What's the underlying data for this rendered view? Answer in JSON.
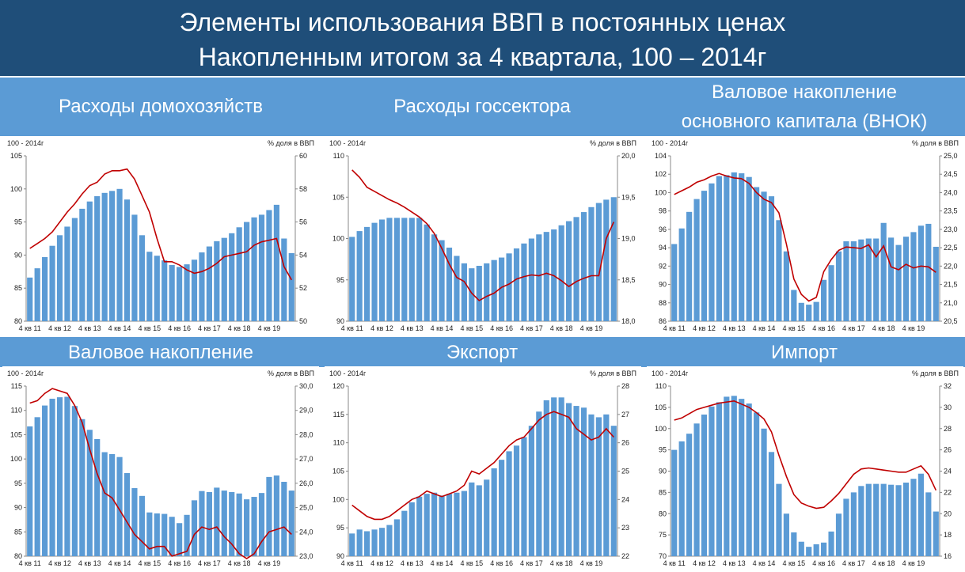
{
  "header": {
    "line1": "Элементы использования ВВП в постоянных ценах",
    "line2": "Накопленным итогом за 4 квартала, 100 – 2014г"
  },
  "colors": {
    "header_bg": "#1f4e79",
    "band_bg": "#5b9bd5",
    "bar": "#5b9bd5",
    "line": "#c00000"
  },
  "x_tick_labels": [
    "4 кв 11",
    "4 кв 12",
    "4 кв 13",
    "4 кв 14",
    "4 кв 15",
    "4 кв 16",
    "4 кв 17",
    "4 кв 18",
    "4 кв 19"
  ],
  "chart_data": [
    {
      "type": "bar",
      "title": "Расходы домохозяйств",
      "left_unit": "100 - 2014г",
      "right_unit": "% доля в ВВП",
      "ylim": [
        80,
        105
      ],
      "yticks": [
        80,
        85,
        90,
        95,
        100,
        105
      ],
      "y2lim": [
        50,
        60
      ],
      "y2ticks": [
        50,
        52,
        54,
        56,
        58,
        60
      ],
      "series": [
        {
          "name": "",
          "type": "bar",
          "axis": "left",
          "values": [
            86.6,
            88.0,
            89.7,
            91.4,
            93.0,
            94.3,
            95.6,
            97.0,
            98.1,
            98.9,
            99.4,
            99.7,
            100.0,
            98.4,
            96.1,
            93.0,
            90.5,
            89.9,
            89.2,
            88.5,
            88.2,
            88.6,
            89.3,
            90.4,
            91.3,
            92.1,
            92.6,
            93.3,
            94.2,
            95.0,
            95.7,
            96.1,
            96.8,
            97.6,
            92.5,
            90.3
          ]
        },
        {
          "name": "",
          "type": "line",
          "axis": "right",
          "values": [
            54.4,
            54.7,
            55.0,
            55.4,
            56.0,
            56.6,
            57.1,
            57.7,
            58.2,
            58.4,
            58.9,
            59.1,
            59.1,
            59.2,
            58.6,
            57.6,
            56.6,
            55.0,
            53.6,
            53.6,
            53.4,
            53.1,
            52.9,
            53.0,
            53.2,
            53.5,
            53.9,
            54.0,
            54.1,
            54.2,
            54.6,
            54.8,
            54.9,
            55.0,
            53.3,
            52.5
          ]
        }
      ]
    },
    {
      "type": "bar",
      "title": "Расходы госсектора",
      "left_unit": "100 - 2014г",
      "right_unit": "% доля в ВВП",
      "ylim": [
        90,
        110
      ],
      "yticks": [
        90,
        95,
        100,
        105,
        110
      ],
      "y2lim": [
        18.0,
        20.0
      ],
      "y2ticks": [
        "18,0",
        "18,5",
        "19,0",
        "19,5",
        "20,0"
      ],
      "series": [
        {
          "name": "",
          "type": "bar",
          "axis": "left",
          "values": [
            100.2,
            100.9,
            101.4,
            101.9,
            102.3,
            102.5,
            102.5,
            102.5,
            102.5,
            102.5,
            101.7,
            100.5,
            99.8,
            98.9,
            97.9,
            97.0,
            96.4,
            96.7,
            97.0,
            97.4,
            97.7,
            98.2,
            98.8,
            99.4,
            100.0,
            100.5,
            100.8,
            101.1,
            101.6,
            102.1,
            102.6,
            103.2,
            103.8,
            104.3,
            104.7,
            105.0
          ]
        },
        {
          "name": "",
          "type": "line",
          "axis": "right",
          "values": [
            19.83,
            19.74,
            19.62,
            19.57,
            19.52,
            19.47,
            19.43,
            19.38,
            19.32,
            19.26,
            19.18,
            19.06,
            18.88,
            18.69,
            18.53,
            18.48,
            18.34,
            18.25,
            18.3,
            18.34,
            18.41,
            18.45,
            18.51,
            18.54,
            18.56,
            18.55,
            18.58,
            18.55,
            18.49,
            18.42,
            18.48,
            18.52,
            18.55,
            18.55,
            19.0,
            19.2
          ]
        }
      ]
    },
    {
      "type": "bar",
      "title": "Валовое накопление основного капитала (ВНОК)",
      "title_line1": "Валовое накопление",
      "title_line2": "основного капитала (ВНОК)",
      "left_unit": "100 - 2014г",
      "right_unit": "% доля в ВВП",
      "ylim": [
        86,
        104
      ],
      "yticks": [
        86,
        88,
        90,
        92,
        94,
        96,
        98,
        100,
        102,
        104
      ],
      "y2lim": [
        20.5,
        25.0
      ],
      "y2ticks": [
        "20,5",
        "21,0",
        "21,5",
        "22,0",
        "22,5",
        "23,0",
        "23,5",
        "24,0",
        "24,5",
        "25,0"
      ],
      "series": [
        {
          "name": "",
          "type": "bar",
          "axis": "left",
          "values": [
            94.4,
            96.1,
            97.9,
            99.3,
            100.2,
            101.0,
            101.8,
            101.9,
            102.2,
            102.1,
            101.7,
            100.6,
            100.1,
            99.6,
            97.0,
            93.6,
            89.4,
            88.0,
            87.8,
            88.1,
            90.5,
            92.1,
            93.6,
            94.7,
            94.7,
            94.9,
            95.0,
            95.0,
            96.7,
            95.1,
            94.3,
            95.2,
            95.7,
            96.4,
            96.6,
            94.1
          ]
        },
        {
          "name": "",
          "type": "line",
          "axis": "right",
          "values": [
            23.95,
            24.05,
            24.15,
            24.28,
            24.35,
            24.45,
            24.52,
            24.45,
            24.4,
            24.38,
            24.25,
            24.0,
            23.82,
            23.73,
            23.45,
            22.6,
            21.65,
            21.23,
            21.05,
            21.15,
            21.85,
            22.18,
            22.43,
            22.52,
            22.5,
            22.48,
            22.58,
            22.25,
            22.55,
            21.98,
            21.9,
            22.05,
            21.95,
            22.0,
            21.98,
            21.83
          ]
        }
      ]
    },
    {
      "type": "bar",
      "title": "Валовое накопление",
      "left_unit": "100 - 2014г",
      "right_unit": "% доля в ВВП",
      "ylim": [
        80,
        115
      ],
      "yticks": [
        80,
        85,
        90,
        95,
        100,
        105,
        110,
        115
      ],
      "y2lim": [
        23.0,
        30.0
      ],
      "y2ticks": [
        "23,0",
        "24,0",
        "25,0",
        "26,0",
        "27,0",
        "28,0",
        "29,0",
        "30,0"
      ],
      "series": [
        {
          "name": "",
          "type": "bar",
          "axis": "left",
          "values": [
            106.7,
            108.6,
            111.0,
            112.4,
            112.7,
            112.8,
            110.9,
            108.2,
            106.0,
            104.1,
            101.4,
            101.0,
            100.4,
            97.1,
            94.0,
            92.4,
            89.0,
            88.8,
            88.7,
            88.1,
            86.8,
            88.5,
            91.5,
            93.4,
            93.2,
            94.1,
            93.5,
            93.2,
            92.9,
            91.7,
            92.2,
            93.0,
            96.3,
            96.6,
            95.3,
            93.5
          ]
        },
        {
          "name": "",
          "type": "line",
          "axis": "right",
          "values": [
            29.3,
            29.4,
            29.7,
            29.9,
            29.8,
            29.7,
            29.2,
            28.5,
            27.4,
            26.4,
            25.6,
            25.4,
            24.9,
            24.4,
            23.9,
            23.6,
            23.3,
            23.4,
            23.4,
            23.0,
            23.1,
            23.2,
            23.9,
            24.2,
            24.1,
            24.2,
            23.8,
            23.5,
            23.1,
            22.9,
            23.1,
            23.6,
            24.0,
            24.1,
            24.2,
            23.9
          ]
        }
      ]
    },
    {
      "type": "bar",
      "title": "Экспорт",
      "left_unit": "100 - 2014г",
      "right_unit": "% доля в ВВП",
      "ylim": [
        90,
        120
      ],
      "yticks": [
        90,
        95,
        100,
        105,
        110,
        115,
        120
      ],
      "y2lim": [
        22,
        28
      ],
      "y2ticks": [
        22,
        23,
        24,
        25,
        26,
        27,
        28
      ],
      "series": [
        {
          "name": "",
          "type": "bar",
          "axis": "left",
          "values": [
            94.0,
            94.7,
            94.4,
            94.7,
            95.0,
            95.5,
            96.5,
            98.0,
            99.5,
            100.5,
            101.0,
            101.2,
            100.7,
            101.0,
            101.2,
            101.5,
            103.0,
            102.5,
            103.5,
            105.5,
            107.0,
            108.5,
            109.5,
            111.0,
            113.0,
            115.5,
            117.5,
            118.0,
            118.0,
            117.0,
            116.5,
            116.2,
            115.0,
            114.5,
            115.0,
            113.0
          ]
        },
        {
          "name": "",
          "type": "line",
          "axis": "right",
          "values": [
            23.8,
            23.6,
            23.4,
            23.3,
            23.3,
            23.4,
            23.6,
            23.8,
            24.0,
            24.1,
            24.3,
            24.2,
            24.1,
            24.2,
            24.3,
            24.5,
            25.0,
            24.9,
            25.1,
            25.3,
            25.6,
            25.9,
            26.1,
            26.2,
            26.5,
            26.8,
            27.0,
            27.1,
            27.0,
            26.9,
            26.5,
            26.3,
            26.1,
            26.2,
            26.5,
            26.2
          ]
        }
      ]
    },
    {
      "type": "bar",
      "title": "Импорт",
      "left_unit": "100 - 2014г",
      "right_unit": "% доля в ВВП",
      "ylim": [
        70,
        110
      ],
      "yticks": [
        70,
        75,
        80,
        85,
        90,
        95,
        100,
        105,
        110
      ],
      "y2lim": [
        16,
        32
      ],
      "y2ticks": [
        16,
        18,
        20,
        22,
        24,
        26,
        28,
        30,
        32
      ],
      "series": [
        {
          "name": "",
          "type": "bar",
          "axis": "left",
          "values": [
            95.0,
            97.0,
            98.8,
            101.2,
            103.3,
            105.2,
            106.2,
            107.5,
            107.7,
            107.0,
            105.9,
            103.8,
            100.0,
            94.5,
            87.0,
            80.0,
            75.6,
            73.4,
            72.2,
            72.8,
            73.2,
            75.8,
            80.0,
            83.5,
            85.0,
            86.5,
            87.0,
            87.0,
            87.0,
            86.8,
            86.7,
            87.3,
            88.2,
            89.4,
            85.0,
            80.5
          ]
        },
        {
          "name": "",
          "type": "line",
          "axis": "right",
          "values": [
            28.8,
            29.0,
            29.4,
            29.8,
            30.0,
            30.2,
            30.4,
            30.5,
            30.6,
            30.3,
            30.0,
            29.5,
            28.9,
            27.7,
            25.5,
            23.5,
            21.8,
            21.0,
            20.7,
            20.5,
            20.6,
            21.2,
            21.9,
            22.8,
            23.7,
            24.2,
            24.3,
            24.2,
            24.1,
            24.0,
            23.9,
            23.9,
            24.2,
            24.5,
            23.7,
            22.2
          ]
        }
      ]
    }
  ]
}
